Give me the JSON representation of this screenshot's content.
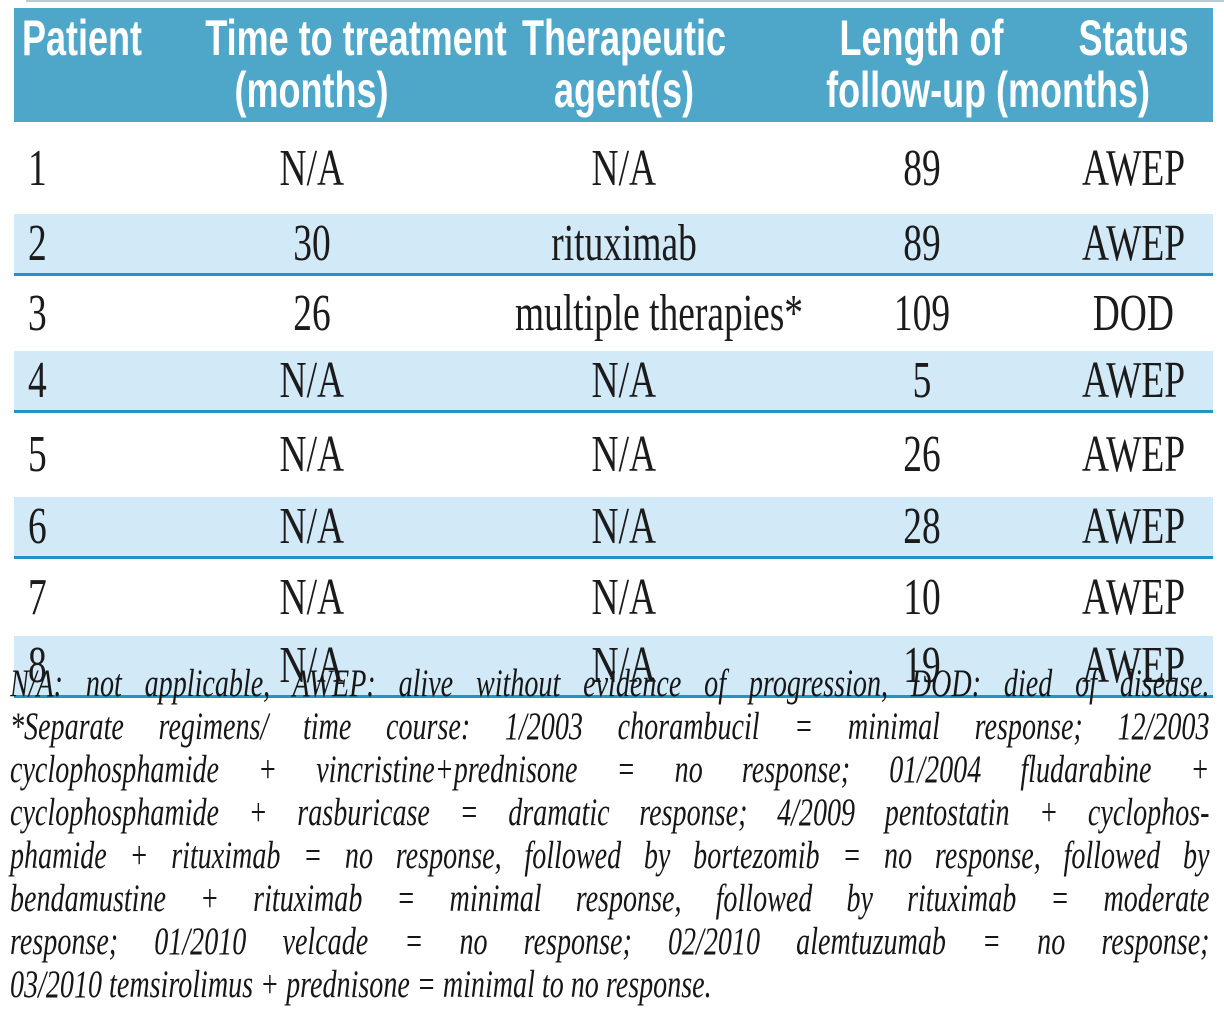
{
  "colors": {
    "header_bg": "#4ea6c9",
    "stripe_bg": "#d2e9f7",
    "rule": "#1e95c5"
  },
  "table": {
    "columns": [
      {
        "id": "patient",
        "line1": "Patient",
        "line2": ""
      },
      {
        "id": "time_to_treatment",
        "line1": "Time to treatment",
        "line2": "(months)"
      },
      {
        "id": "therapeutic_agents",
        "line1": "Therapeutic",
        "line2": "agent(s)"
      },
      {
        "id": "length_followup",
        "line1": "Length of",
        "line2": "follow-up (months)"
      },
      {
        "id": "status",
        "line1": "Status",
        "line2": ""
      }
    ],
    "rows": [
      {
        "patient": "1",
        "time_to_treatment": "N/A",
        "therapeutic_agents": "N/A",
        "length_followup": "89",
        "status": "AWEP"
      },
      {
        "patient": "2",
        "time_to_treatment": "30",
        "therapeutic_agents": "rituximab",
        "length_followup": "89",
        "status": "AWEP"
      },
      {
        "patient": "3",
        "time_to_treatment": "26",
        "therapeutic_agents": "multiple therapies*",
        "length_followup": "109",
        "status": "DOD"
      },
      {
        "patient": "4",
        "time_to_treatment": "N/A",
        "therapeutic_agents": "N/A",
        "length_followup": "5",
        "status": "AWEP"
      },
      {
        "patient": "5",
        "time_to_treatment": "N/A",
        "therapeutic_agents": "N/A",
        "length_followup": "26",
        "status": "AWEP"
      },
      {
        "patient": "6",
        "time_to_treatment": "N/A",
        "therapeutic_agents": "N/A",
        "length_followup": "28",
        "status": "AWEP"
      },
      {
        "patient": "7",
        "time_to_treatment": "N/A",
        "therapeutic_agents": "N/A",
        "length_followup": "10",
        "status": "AWEP"
      },
      {
        "patient": "8",
        "time_to_treatment": "N/A",
        "therapeutic_agents": "N/A",
        "length_followup": "19",
        "status": "AWEP"
      }
    ]
  },
  "footnote": {
    "lines": [
      "N/A: not applicable, AWEP: alive without evidence of progression, DOD: died of disease.",
      "*Separate regimens/ time course: 1/2003 chorambucil = minimal response; 12/2003",
      "cyclophosphamide + vincristine+prednisone = no response; 01/2004 fludarabine +",
      "cyclophosphamide + rasburicase = dramatic response; 4/2009 pentostatin + cyclophos-",
      "phamide + rituximab = no response, followed by bortezomib = no response, followed by",
      "bendamustine + rituximab = minimal response, followed by rituximab = moderate",
      "response; 01/2010 velcade = no response; 02/2010 alemtuzumab = no response;",
      "03/2010 temsirolimus + prednisone = minimal to no response."
    ]
  }
}
